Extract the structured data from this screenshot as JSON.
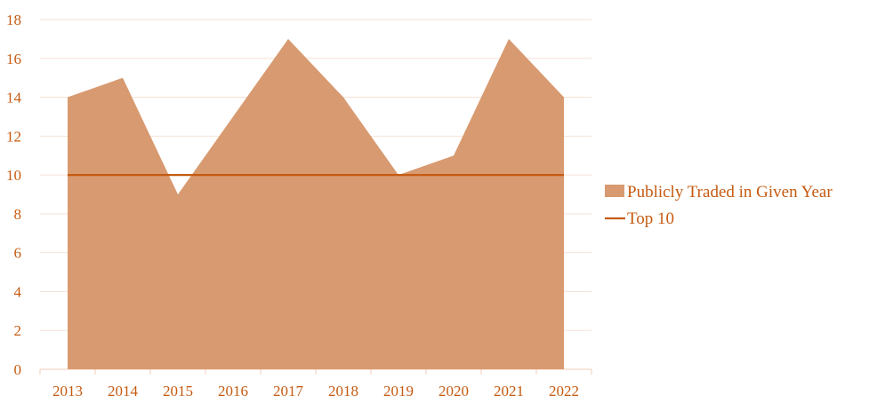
{
  "chart_data": {
    "type": "area",
    "title": "",
    "xlabel": "",
    "ylabel": "",
    "categories": [
      "2013",
      "2014",
      "2015",
      "2016",
      "2017",
      "2018",
      "2019",
      "2020",
      "2021",
      "2022"
    ],
    "ylim": [
      0,
      18
    ],
    "yticks": [
      0,
      2,
      4,
      6,
      8,
      10,
      12,
      14,
      16,
      18
    ],
    "grid": true,
    "legend_position": "right",
    "series": [
      {
        "name": "Publicly Traded in Given Year",
        "type": "area",
        "color": "#d89a70",
        "values": [
          14,
          15,
          9,
          13,
          17,
          14,
          10,
          11,
          17,
          14
        ]
      },
      {
        "name": "Top 10",
        "type": "line",
        "color": "#c55a11",
        "values": [
          10,
          10,
          10,
          10,
          10,
          10,
          10,
          10,
          10,
          10
        ]
      }
    ],
    "colors": {
      "axis_text": "#c55a11",
      "grid": "#f6e2d6",
      "axis": "#f0cdb8"
    }
  }
}
